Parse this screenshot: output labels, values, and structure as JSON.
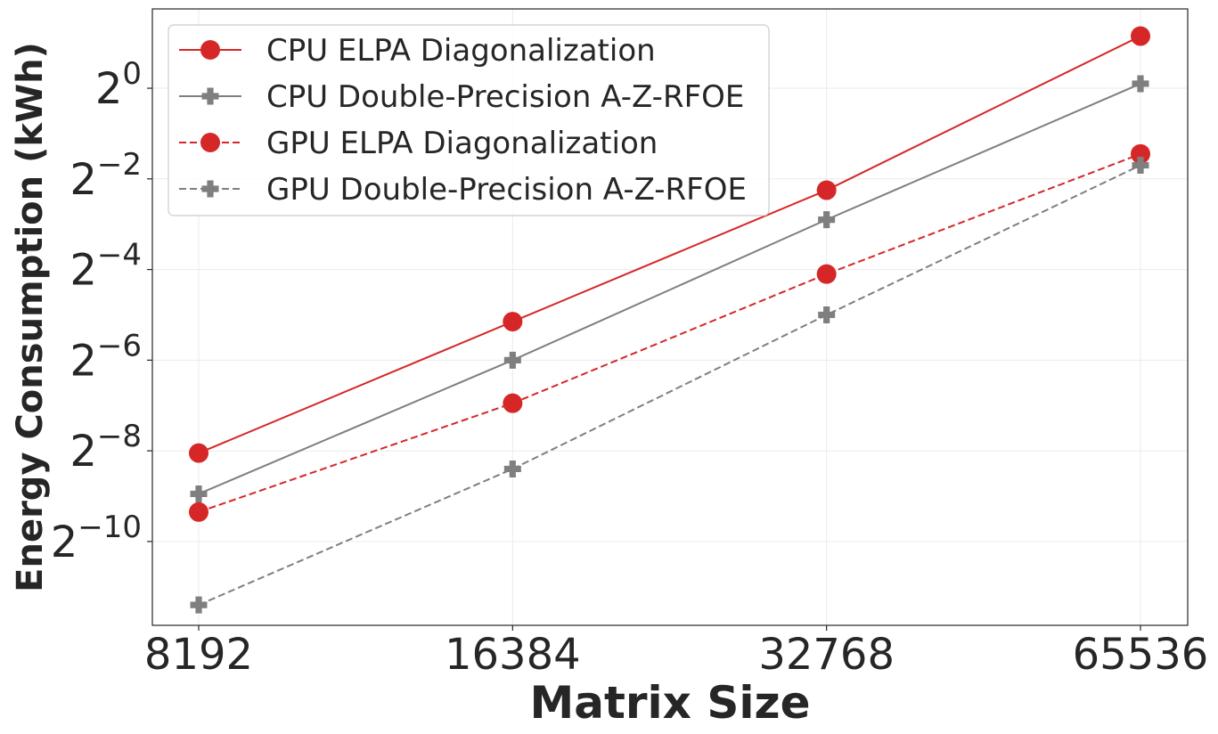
{
  "chart_data": {
    "type": "line",
    "title": "",
    "xlabel": "Matrix Size",
    "ylabel": "Energy Consumption (kWh)",
    "x": [
      8192,
      16384,
      32768,
      65536
    ],
    "x_tick_labels": [
      "8192",
      "16384",
      "32768",
      "65536"
    ],
    "y_scale": "log2",
    "y_tick_base": "2",
    "y_tick_exponents": [
      "0",
      "−2",
      "−4",
      "−6",
      "−8",
      "−10"
    ],
    "y_tick_values_log2": [
      0,
      -2,
      -4,
      -6,
      -8,
      -10
    ],
    "ylim_log2": [
      -11.85,
      1.75
    ],
    "grid": true,
    "legend_position": "top-left",
    "series": [
      {
        "name": "CPU ELPA Diagonalization",
        "log2_values": [
          -8.05,
          -5.15,
          -2.25,
          1.15
        ],
        "color": "#d62728",
        "linestyle": "solid",
        "marker": "circle"
      },
      {
        "name": "CPU Double-Precision A-Z-RFOE",
        "log2_values": [
          -8.95,
          -6.0,
          -2.9,
          0.1
        ],
        "color": "#7f7f7f",
        "linestyle": "solid",
        "marker": "plus"
      },
      {
        "name": "GPU ELPA Diagonalization",
        "log2_values": [
          -9.35,
          -6.95,
          -4.1,
          -1.45
        ],
        "color": "#d62728",
        "linestyle": "dashed",
        "marker": "circle"
      },
      {
        "name": "GPU Double-Precision A-Z-RFOE",
        "log2_values": [
          -11.4,
          -8.4,
          -5.0,
          -1.7
        ],
        "color": "#7f7f7f",
        "linestyle": "dashed",
        "marker": "plus"
      }
    ]
  }
}
